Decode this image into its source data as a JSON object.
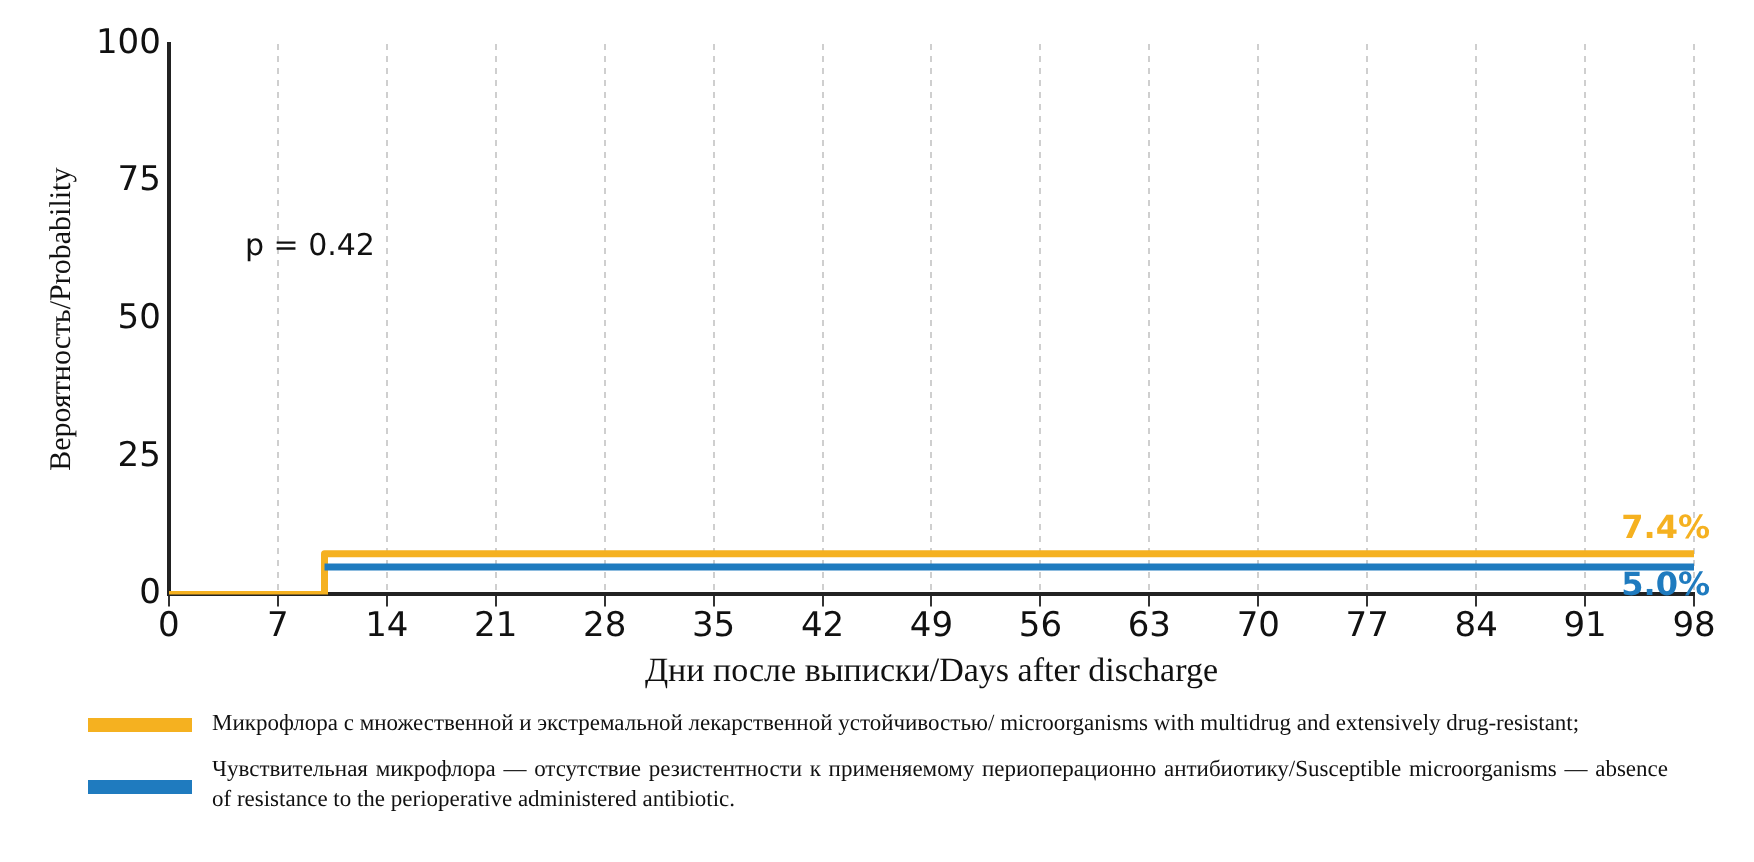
{
  "chart_data": {
    "type": "step",
    "xlabel": "Дни после выписки/Days after discharge",
    "ylabel": "Вероятность/Probability",
    "xlim": [
      0,
      98
    ],
    "xticks": [
      0,
      7,
      14,
      21,
      28,
      35,
      42,
      49,
      56,
      63,
      70,
      77,
      84,
      91,
      98
    ],
    "ylim": [
      0,
      100
    ],
    "yticks": [
      0,
      25,
      50,
      75,
      100
    ],
    "grid": "x",
    "legend": "bottom",
    "marker": "none",
    "line_style": "solid",
    "annotations": [
      "p = 0.42"
    ],
    "series": [
      {
        "name": "Микрофлора с множественной и экстремальной лекарственной устойчивостью/ microorganisms with multidrug and extensively drug-resistant;",
        "color": "#f5b120",
        "x": [
          0,
          10,
          98
        ],
        "values": [
          0,
          7.4,
          7.4
        ],
        "value_labels": [
          null,
          null,
          "7.4%"
        ]
      },
      {
        "name": "Чувствительная микрофлора — отсутствие резистентности к применяемому периоперационно антибиотику/Susceptible microorganisms — absence of resistance to the perioperative administered antibiotic.",
        "color": "#1f7bbf",
        "x": [
          10,
          98
        ],
        "values": [
          5.0,
          5.0
        ],
        "value_labels": [
          null,
          "5.0%"
        ]
      }
    ]
  }
}
